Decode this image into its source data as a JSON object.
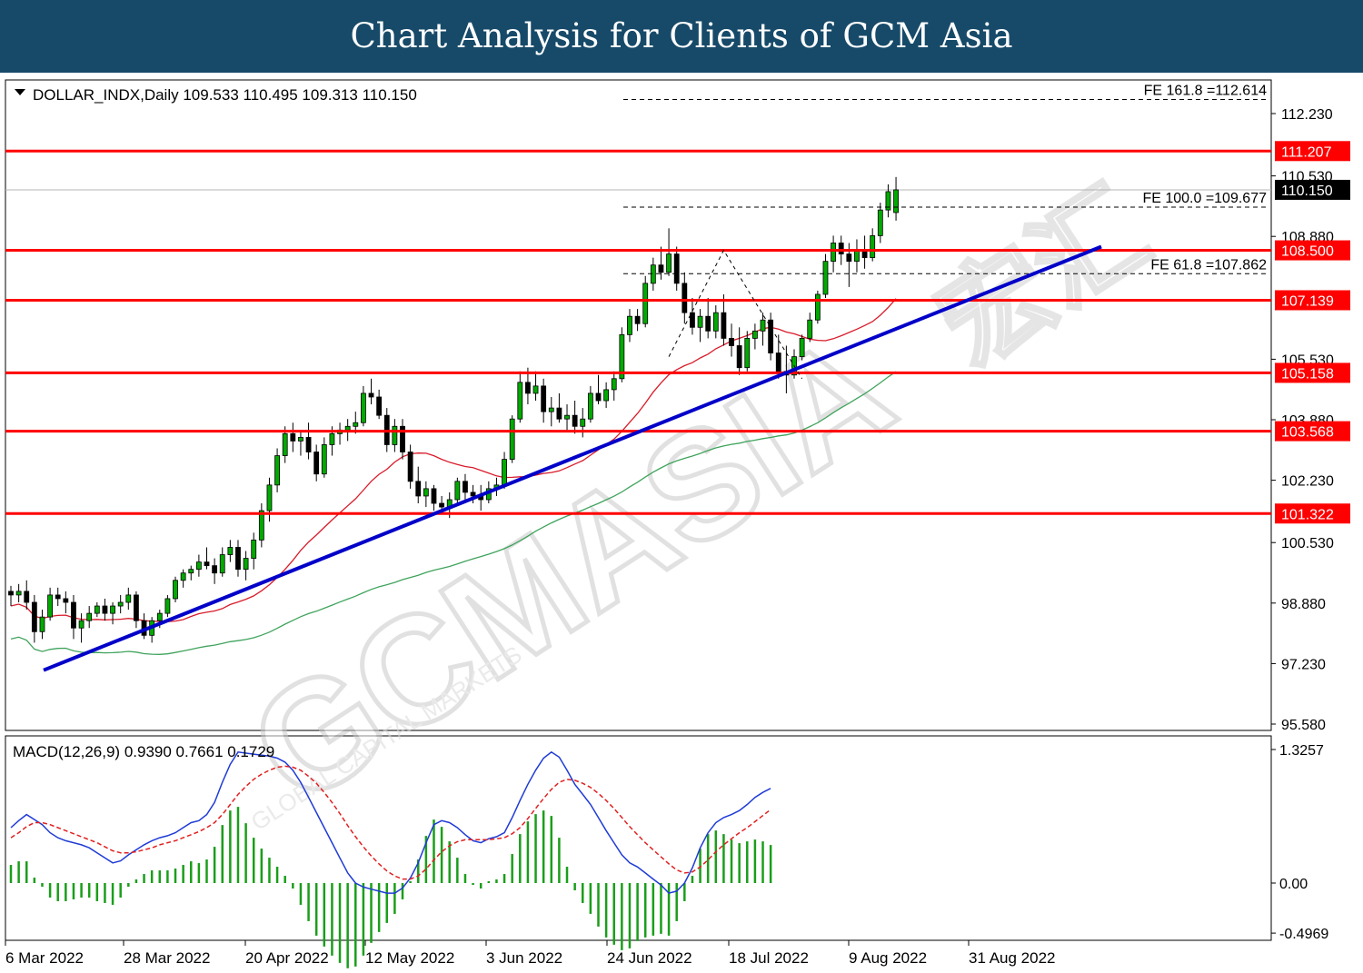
{
  "banner": {
    "title": "Chart Analysis for Clients of GCM Asia"
  },
  "watermark": {
    "main": "GCMASIA",
    "secondary": "GLOBAL CAPITAL MARKETS",
    "chinese": "宏汇"
  },
  "chart_data": [
    {
      "type": "candlestick",
      "title": "DOLLAR_INDX,Daily",
      "ohlc_header": "109.533 110.495 109.313 110.150",
      "header_text": "DOLLAR_INDX,Daily  109.533 110.495 109.313 110.150",
      "ylim": [
        95.58,
        113.2
      ],
      "yticks": [
        "112.230",
        "110.530",
        "108.880",
        "105.530",
        "103.880",
        "102.230",
        "100.530",
        "98.880",
        "97.230",
        "95.580"
      ],
      "current_price": "110.150",
      "dates": [
        "6 Mar 2022",
        "28 Mar 2022",
        "20 Apr 2022",
        "12 May 2022",
        "3 Jun 2022",
        "24 Jun 2022",
        "18 Jul 2022",
        "9 Aug 2022",
        "31 Aug 2022"
      ],
      "candles": [
        [
          99.2,
          99.35,
          98.8,
          99.1
        ],
        [
          99.1,
          99.4,
          98.9,
          99.2
        ],
        [
          99.2,
          99.5,
          98.7,
          98.9
        ],
        [
          98.9,
          99.1,
          97.8,
          98.1
        ],
        [
          98.1,
          98.7,
          97.9,
          98.5
        ],
        [
          98.5,
          99.3,
          98.4,
          99.1
        ],
        [
          99.1,
          99.3,
          98.8,
          99.0
        ],
        [
          99.0,
          99.2,
          98.6,
          98.9
        ],
        [
          98.9,
          99.1,
          97.9,
          98.2
        ],
        [
          98.2,
          98.6,
          97.8,
          98.4
        ],
        [
          98.4,
          98.8,
          98.2,
          98.6
        ],
        [
          98.6,
          98.9,
          98.5,
          98.8
        ],
        [
          98.8,
          99.0,
          98.4,
          98.6
        ],
        [
          98.6,
          98.9,
          98.3,
          98.8
        ],
        [
          98.8,
          99.1,
          98.6,
          98.9
        ],
        [
          98.9,
          99.3,
          98.7,
          99.1
        ],
        [
          99.1,
          99.2,
          98.2,
          98.4
        ],
        [
          98.4,
          98.6,
          97.9,
          98.0
        ],
        [
          98.0,
          98.5,
          97.8,
          98.4
        ],
        [
          98.4,
          98.7,
          98.2,
          98.6
        ],
        [
          98.6,
          99.1,
          98.5,
          99.0
        ],
        [
          99.0,
          99.6,
          98.9,
          99.5
        ],
        [
          99.5,
          99.8,
          99.3,
          99.7
        ],
        [
          99.7,
          99.9,
          99.5,
          99.8
        ],
        [
          99.8,
          100.2,
          99.6,
          100.0
        ],
        [
          100.0,
          100.4,
          99.8,
          99.9
        ],
        [
          99.9,
          100.1,
          99.4,
          99.7
        ],
        [
          99.7,
          100.4,
          99.6,
          100.2
        ],
        [
          100.2,
          100.6,
          100.0,
          100.4
        ],
        [
          100.4,
          100.6,
          99.6,
          99.8
        ],
        [
          99.8,
          100.3,
          99.5,
          100.1
        ],
        [
          100.1,
          100.8,
          99.8,
          100.6
        ],
        [
          100.6,
          101.6,
          100.4,
          101.4
        ],
        [
          101.4,
          102.3,
          101.1,
          102.1
        ],
        [
          102.1,
          103.1,
          101.9,
          102.9
        ],
        [
          102.9,
          103.7,
          102.7,
          103.5
        ],
        [
          103.5,
          103.8,
          103.0,
          103.3
        ],
        [
          103.3,
          103.6,
          102.9,
          103.4
        ],
        [
          103.4,
          103.8,
          102.8,
          103.0
        ],
        [
          103.0,
          103.2,
          102.2,
          102.4
        ],
        [
          102.4,
          103.4,
          102.3,
          103.2
        ],
        [
          103.2,
          103.7,
          102.9,
          103.5
        ],
        [
          103.5,
          103.8,
          103.2,
          103.6
        ],
        [
          103.6,
          103.9,
          103.3,
          103.7
        ],
        [
          103.7,
          104.1,
          103.5,
          103.8
        ],
        [
          103.8,
          104.8,
          103.7,
          104.6
        ],
        [
          104.6,
          105.0,
          104.3,
          104.5
        ],
        [
          104.5,
          104.7,
          103.9,
          104.0
        ],
        [
          104.0,
          104.2,
          103.0,
          103.2
        ],
        [
          103.2,
          103.9,
          103.0,
          103.7
        ],
        [
          103.7,
          103.9,
          102.8,
          103.0
        ],
        [
          103.0,
          103.2,
          102.0,
          102.2
        ],
        [
          102.2,
          102.6,
          101.6,
          101.8
        ],
        [
          101.8,
          102.2,
          101.5,
          102.0
        ],
        [
          102.0,
          102.1,
          101.4,
          101.6
        ],
        [
          101.6,
          101.8,
          101.3,
          101.5
        ],
        [
          101.5,
          101.9,
          101.2,
          101.7
        ],
        [
          101.7,
          102.3,
          101.6,
          102.2
        ],
        [
          102.2,
          102.4,
          101.7,
          101.9
        ],
        [
          101.9,
          102.1,
          101.6,
          101.8
        ],
        [
          101.8,
          102.1,
          101.4,
          101.7
        ],
        [
          101.7,
          102.2,
          101.6,
          102.0
        ],
        [
          102.0,
          102.3,
          101.8,
          102.1
        ],
        [
          102.1,
          103.0,
          102.0,
          102.8
        ],
        [
          102.8,
          104.0,
          102.7,
          103.9
        ],
        [
          103.9,
          105.2,
          103.8,
          104.9
        ],
        [
          104.9,
          105.3,
          104.3,
          104.6
        ],
        [
          104.6,
          105.2,
          104.4,
          104.8
        ],
        [
          104.8,
          105.0,
          103.8,
          104.1
        ],
        [
          104.1,
          104.5,
          103.7,
          104.2
        ],
        [
          104.2,
          104.6,
          103.8,
          103.9
        ],
        [
          103.9,
          104.3,
          103.6,
          104.0
        ],
        [
          104.0,
          104.4,
          103.5,
          103.7
        ],
        [
          103.7,
          104.2,
          103.4,
          103.9
        ],
        [
          103.9,
          104.8,
          103.8,
          104.6
        ],
        [
          104.6,
          105.1,
          104.3,
          104.4
        ],
        [
          104.4,
          104.9,
          104.2,
          104.7
        ],
        [
          104.7,
          105.2,
          104.4,
          105.0
        ],
        [
          105.0,
          106.4,
          104.9,
          106.2
        ],
        [
          106.2,
          106.9,
          106.0,
          106.7
        ],
        [
          106.7,
          106.9,
          106.3,
          106.5
        ],
        [
          106.5,
          107.8,
          106.4,
          107.6
        ],
        [
          107.6,
          108.3,
          107.4,
          108.1
        ],
        [
          108.1,
          108.6,
          107.7,
          107.9
        ],
        [
          107.9,
          109.1,
          107.8,
          108.4
        ],
        [
          108.4,
          108.6,
          107.4,
          107.6
        ],
        [
          107.6,
          107.9,
          106.5,
          106.8
        ],
        [
          106.8,
          107.2,
          106.2,
          106.4
        ],
        [
          106.4,
          106.9,
          106.0,
          106.7
        ],
        [
          106.7,
          107.2,
          106.1,
          106.3
        ],
        [
          106.3,
          107.0,
          106.1,
          106.8
        ],
        [
          106.8,
          107.3,
          105.9,
          106.1
        ],
        [
          106.1,
          106.5,
          105.6,
          105.9
        ],
        [
          105.9,
          106.4,
          105.1,
          105.3
        ],
        [
          105.3,
          106.3,
          105.2,
          106.1
        ],
        [
          106.1,
          106.5,
          105.8,
          106.3
        ],
        [
          106.3,
          106.8,
          105.9,
          106.6
        ],
        [
          106.6,
          106.8,
          105.5,
          105.7
        ],
        [
          105.7,
          106.2,
          105.0,
          105.2
        ],
        [
          105.2,
          105.9,
          104.6,
          105.1
        ],
        [
          105.1,
          105.8,
          105.0,
          105.6
        ],
        [
          105.6,
          106.2,
          105.5,
          106.1
        ],
        [
          106.1,
          106.8,
          106.0,
          106.6
        ],
        [
          106.6,
          107.4,
          106.5,
          107.3
        ],
        [
          107.3,
          108.4,
          107.2,
          108.2
        ],
        [
          108.2,
          108.9,
          107.9,
          108.7
        ],
        [
          108.7,
          108.9,
          108.1,
          108.4
        ],
        [
          108.4,
          108.7,
          107.5,
          108.2
        ],
        [
          108.2,
          108.8,
          107.9,
          108.5
        ],
        [
          108.5,
          108.9,
          108.0,
          108.3
        ],
        [
          108.3,
          109.1,
          108.2,
          108.9
        ],
        [
          108.9,
          109.8,
          108.7,
          109.6
        ],
        [
          109.6,
          110.3,
          109.4,
          110.1
        ],
        [
          109.53,
          110.5,
          109.31,
          110.15
        ]
      ],
      "levels": [
        "111.207",
        "108.500",
        "107.139",
        "105.158",
        "103.568",
        "101.322"
      ],
      "fib": [
        {
          "label": "FE 161.8 =112.614",
          "value": 112.614
        },
        {
          "label": "FE 100.0 =109.677",
          "value": 109.677
        },
        {
          "label": "FE 61.8 =107.862",
          "value": 107.862
        }
      ],
      "trendline": {
        "from": 97.05,
        "to": 108.6
      },
      "colors": {
        "bull": "#00aa00",
        "bear": "#000000",
        "level": "#ff0000",
        "trend": "#0000c8",
        "ma_fast": "#d81b2a",
        "ma_slow": "#3fa35c"
      }
    },
    {
      "type": "macd",
      "title": "MACD(12,26,9) 0.9390 0.7661 0.1729",
      "ylim": [
        -0.4969,
        1.3257
      ],
      "yticks": [
        "1.3257",
        "0.00",
        "-0.4969"
      ],
      "macd": [
        0.55,
        0.62,
        0.68,
        0.63,
        0.58,
        0.5,
        0.45,
        0.42,
        0.4,
        0.38,
        0.35,
        0.3,
        0.25,
        0.2,
        0.22,
        0.28,
        0.33,
        0.38,
        0.42,
        0.45,
        0.47,
        0.5,
        0.55,
        0.6,
        0.62,
        0.68,
        0.8,
        1.0,
        1.18,
        1.3,
        1.29,
        1.28,
        1.27,
        1.26,
        1.24,
        1.2,
        1.12,
        1.0,
        0.85,
        0.7,
        0.55,
        0.4,
        0.25,
        0.1,
        0.0,
        -0.04,
        -0.06,
        -0.08,
        -0.1,
        -0.1,
        -0.05,
        0.05,
        0.2,
        0.4,
        0.58,
        0.62,
        0.6,
        0.55,
        0.48,
        0.42,
        0.4,
        0.44,
        0.46,
        0.5,
        0.65,
        0.82,
        0.98,
        1.12,
        1.24,
        1.3,
        1.25,
        1.12,
        0.98,
        0.88,
        0.78,
        0.65,
        0.52,
        0.4,
        0.28,
        0.2,
        0.16,
        0.1,
        0.04,
        -0.02,
        -0.1,
        -0.08,
        0.0,
        0.15,
        0.35,
        0.5,
        0.6,
        0.65,
        0.68,
        0.72,
        0.78,
        0.85,
        0.9,
        0.94
      ],
      "signal": [
        0.45,
        0.5,
        0.56,
        0.6,
        0.6,
        0.58,
        0.55,
        0.52,
        0.49,
        0.46,
        0.43,
        0.4,
        0.36,
        0.32,
        0.3,
        0.3,
        0.31,
        0.33,
        0.35,
        0.38,
        0.4,
        0.42,
        0.45,
        0.48,
        0.51,
        0.55,
        0.6,
        0.68,
        0.78,
        0.88,
        0.96,
        1.03,
        1.08,
        1.12,
        1.15,
        1.16,
        1.15,
        1.12,
        1.06,
        0.99,
        0.9,
        0.8,
        0.69,
        0.57,
        0.46,
        0.36,
        0.27,
        0.19,
        0.12,
        0.07,
        0.04,
        0.04,
        0.07,
        0.14,
        0.23,
        0.31,
        0.37,
        0.41,
        0.43,
        0.43,
        0.43,
        0.43,
        0.44,
        0.45,
        0.49,
        0.55,
        0.64,
        0.74,
        0.84,
        0.93,
        1.0,
        1.03,
        1.02,
        0.99,
        0.95,
        0.89,
        0.82,
        0.74,
        0.65,
        0.56,
        0.48,
        0.4,
        0.33,
        0.26,
        0.19,
        0.13,
        0.1,
        0.11,
        0.16,
        0.23,
        0.31,
        0.38,
        0.44,
        0.5,
        0.55,
        0.61,
        0.67,
        0.73
      ]
    }
  ]
}
